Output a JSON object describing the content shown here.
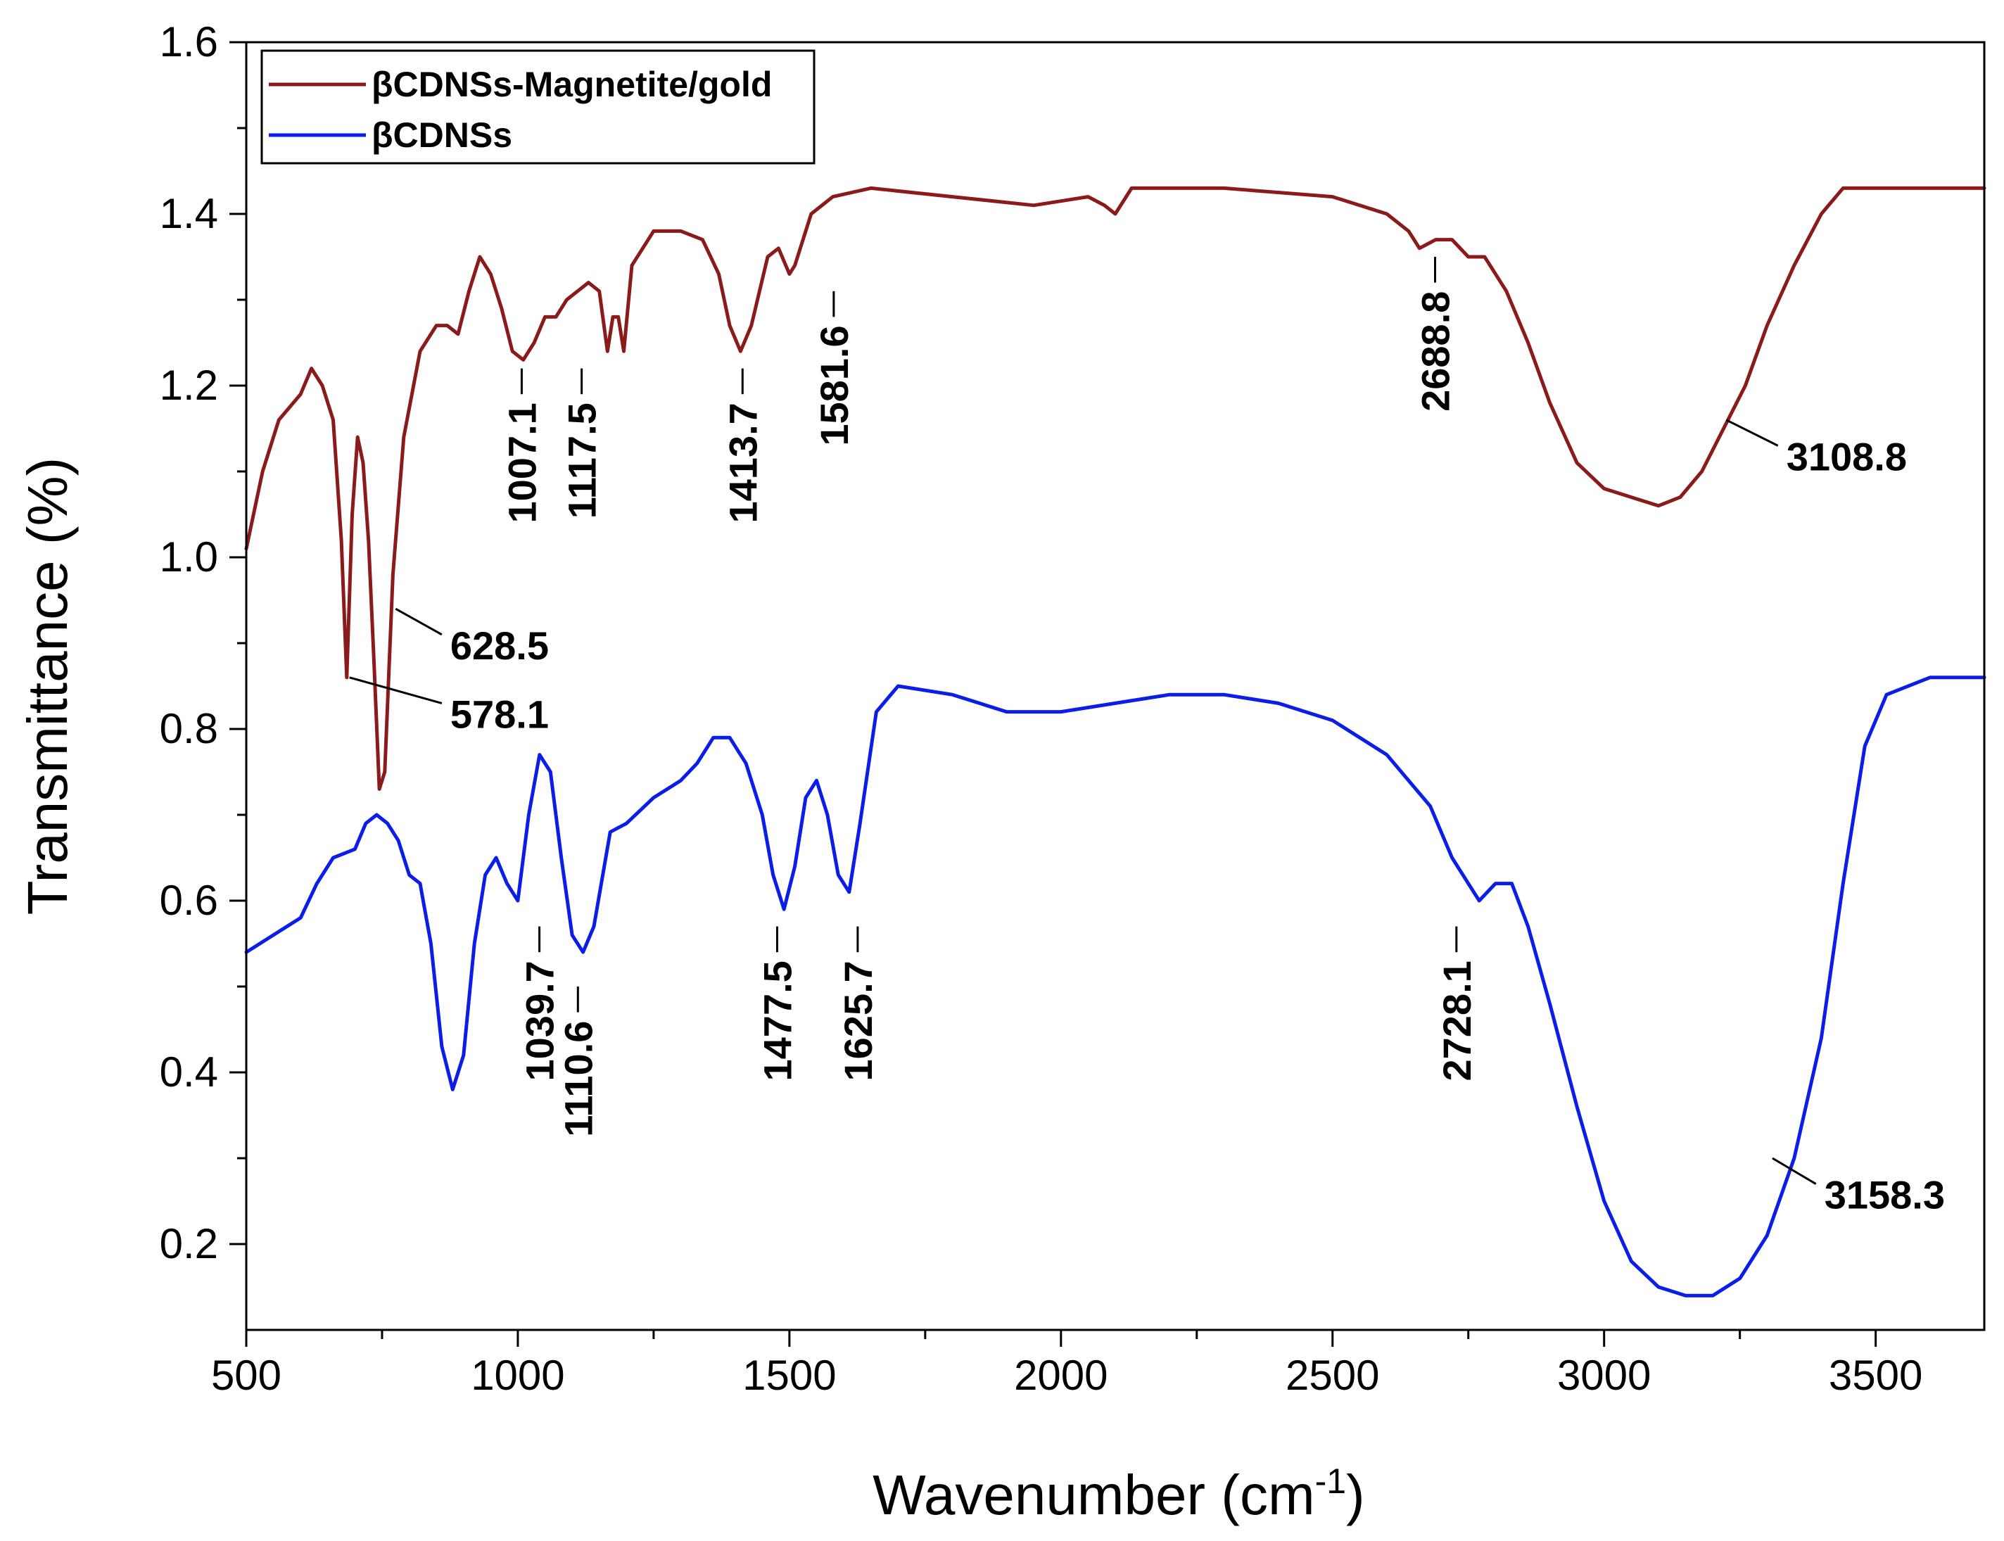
{
  "chart_data": {
    "type": "line",
    "xlabel": "Wavenumber (cm",
    "xlabel_sup": "-1",
    "xlabel_end": ")",
    "ylabel": "Transmittance (%)",
    "xlim": [
      500,
      3700
    ],
    "ylim": [
      0.1,
      1.6
    ],
    "xticks": [
      500,
      1000,
      1500,
      2000,
      2500,
      3000,
      3500
    ],
    "xtick_labels": [
      "500",
      "1000",
      "1500",
      "2000",
      "2500",
      "3000",
      "3500"
    ],
    "yticks": [
      0.2,
      0.4,
      0.6,
      0.8,
      1.0,
      1.2,
      1.4,
      1.6
    ],
    "ytick_labels": [
      "0.2",
      "0.4",
      "0.6",
      "0.8",
      "1.0",
      "1.2",
      "1.4",
      "1.6"
    ],
    "legend": {
      "placement": "top-left"
    },
    "series": [
      {
        "name": "βCDNSs-Magnetite/gold",
        "color": "#8b1a1a",
        "points": [
          [
            500,
            1.01
          ],
          [
            530,
            1.1
          ],
          [
            560,
            1.16
          ],
          [
            600,
            1.19
          ],
          [
            620,
            1.22
          ],
          [
            640,
            1.2
          ],
          [
            660,
            1.16
          ],
          [
            675,
            1.02
          ],
          [
            685,
            0.86
          ],
          [
            695,
            1.05
          ],
          [
            705,
            1.14
          ],
          [
            715,
            1.11
          ],
          [
            725,
            1.02
          ],
          [
            735,
            0.88
          ],
          [
            745,
            0.73
          ],
          [
            755,
            0.75
          ],
          [
            770,
            0.98
          ],
          [
            790,
            1.14
          ],
          [
            820,
            1.24
          ],
          [
            850,
            1.27
          ],
          [
            870,
            1.27
          ],
          [
            890,
            1.26
          ],
          [
            910,
            1.31
          ],
          [
            930,
            1.35
          ],
          [
            950,
            1.33
          ],
          [
            970,
            1.29
          ],
          [
            990,
            1.24
          ],
          [
            1010,
            1.23
          ],
          [
            1030,
            1.25
          ],
          [
            1050,
            1.28
          ],
          [
            1070,
            1.28
          ],
          [
            1090,
            1.3
          ],
          [
            1110,
            1.31
          ],
          [
            1130,
            1.32
          ],
          [
            1150,
            1.31
          ],
          [
            1165,
            1.24
          ],
          [
            1175,
            1.28
          ],
          [
            1185,
            1.28
          ],
          [
            1195,
            1.24
          ],
          [
            1210,
            1.34
          ],
          [
            1250,
            1.38
          ],
          [
            1300,
            1.38
          ],
          [
            1340,
            1.37
          ],
          [
            1370,
            1.33
          ],
          [
            1390,
            1.27
          ],
          [
            1410,
            1.24
          ],
          [
            1430,
            1.27
          ],
          [
            1460,
            1.35
          ],
          [
            1480,
            1.36
          ],
          [
            1500,
            1.33
          ],
          [
            1510,
            1.34
          ],
          [
            1540,
            1.4
          ],
          [
            1580,
            1.42
          ],
          [
            1650,
            1.43
          ],
          [
            1800,
            1.42
          ],
          [
            1950,
            1.41
          ],
          [
            2050,
            1.42
          ],
          [
            2080,
            1.41
          ],
          [
            2100,
            1.4
          ],
          [
            2130,
            1.43
          ],
          [
            2300,
            1.43
          ],
          [
            2500,
            1.42
          ],
          [
            2600,
            1.4
          ],
          [
            2640,
            1.38
          ],
          [
            2660,
            1.36
          ],
          [
            2690,
            1.37
          ],
          [
            2720,
            1.37
          ],
          [
            2750,
            1.35
          ],
          [
            2780,
            1.35
          ],
          [
            2820,
            1.31
          ],
          [
            2860,
            1.25
          ],
          [
            2900,
            1.18
          ],
          [
            2950,
            1.11
          ],
          [
            3000,
            1.08
          ],
          [
            3050,
            1.07
          ],
          [
            3100,
            1.06
          ],
          [
            3140,
            1.07
          ],
          [
            3180,
            1.1
          ],
          [
            3220,
            1.15
          ],
          [
            3260,
            1.2
          ],
          [
            3300,
            1.27
          ],
          [
            3350,
            1.34
          ],
          [
            3400,
            1.4
          ],
          [
            3440,
            1.43
          ],
          [
            3500,
            1.43
          ],
          [
            3600,
            1.43
          ],
          [
            3700,
            1.43
          ]
        ]
      },
      {
        "name": "βCDNSs",
        "color": "#0b1ee8",
        "points": [
          [
            500,
            0.54
          ],
          [
            550,
            0.56
          ],
          [
            600,
            0.58
          ],
          [
            630,
            0.62
          ],
          [
            660,
            0.65
          ],
          [
            700,
            0.66
          ],
          [
            720,
            0.69
          ],
          [
            740,
            0.7
          ],
          [
            760,
            0.69
          ],
          [
            780,
            0.67
          ],
          [
            800,
            0.63
          ],
          [
            820,
            0.62
          ],
          [
            840,
            0.55
          ],
          [
            860,
            0.43
          ],
          [
            880,
            0.38
          ],
          [
            900,
            0.42
          ],
          [
            920,
            0.55
          ],
          [
            940,
            0.63
          ],
          [
            960,
            0.65
          ],
          [
            980,
            0.62
          ],
          [
            1000,
            0.6
          ],
          [
            1020,
            0.7
          ],
          [
            1040,
            0.77
          ],
          [
            1060,
            0.75
          ],
          [
            1080,
            0.65
          ],
          [
            1100,
            0.56
          ],
          [
            1120,
            0.54
          ],
          [
            1140,
            0.57
          ],
          [
            1170,
            0.68
          ],
          [
            1200,
            0.69
          ],
          [
            1250,
            0.72
          ],
          [
            1300,
            0.74
          ],
          [
            1330,
            0.76
          ],
          [
            1360,
            0.79
          ],
          [
            1390,
            0.79
          ],
          [
            1420,
            0.76
          ],
          [
            1450,
            0.7
          ],
          [
            1470,
            0.63
          ],
          [
            1490,
            0.59
          ],
          [
            1510,
            0.64
          ],
          [
            1530,
            0.72
          ],
          [
            1550,
            0.74
          ],
          [
            1570,
            0.7
          ],
          [
            1590,
            0.63
          ],
          [
            1610,
            0.61
          ],
          [
            1630,
            0.69
          ],
          [
            1660,
            0.82
          ],
          [
            1700,
            0.85
          ],
          [
            1800,
            0.84
          ],
          [
            1900,
            0.82
          ],
          [
            2000,
            0.82
          ],
          [
            2100,
            0.83
          ],
          [
            2200,
            0.84
          ],
          [
            2300,
            0.84
          ],
          [
            2400,
            0.83
          ],
          [
            2500,
            0.81
          ],
          [
            2600,
            0.77
          ],
          [
            2680,
            0.71
          ],
          [
            2720,
            0.65
          ],
          [
            2750,
            0.62
          ],
          [
            2770,
            0.6
          ],
          [
            2800,
            0.62
          ],
          [
            2830,
            0.62
          ],
          [
            2860,
            0.57
          ],
          [
            2900,
            0.48
          ],
          [
            2950,
            0.36
          ],
          [
            3000,
            0.25
          ],
          [
            3050,
            0.18
          ],
          [
            3100,
            0.15
          ],
          [
            3150,
            0.14
          ],
          [
            3200,
            0.14
          ],
          [
            3250,
            0.16
          ],
          [
            3300,
            0.21
          ],
          [
            3350,
            0.3
          ],
          [
            3400,
            0.44
          ],
          [
            3440,
            0.62
          ],
          [
            3480,
            0.78
          ],
          [
            3520,
            0.84
          ],
          [
            3600,
            0.86
          ],
          [
            3700,
            0.86
          ]
        ]
      }
    ],
    "annotations": [
      {
        "text": "1007.1",
        "x": 1007.1,
        "y_line_top": 1.22,
        "y_line_bottom": 1.19,
        "orient": "vertical",
        "series": 0
      },
      {
        "text": "1117.5",
        "x": 1117.5,
        "y_line_top": 1.22,
        "y_line_bottom": 1.19,
        "orient": "vertical",
        "series": 0
      },
      {
        "text": "1413.7",
        "x": 1413.7,
        "y_line_top": 1.22,
        "y_line_bottom": 1.19,
        "orient": "vertical",
        "series": 0
      },
      {
        "text": "1581.6",
        "x": 1581.6,
        "y_line_top": 1.31,
        "y_line_bottom": 1.28,
        "orient": "vertical",
        "series": 0
      },
      {
        "text": "2688.8",
        "x": 2688.8,
        "y_line_top": 1.35,
        "y_line_bottom": 1.32,
        "orient": "vertical",
        "series": 0
      },
      {
        "text": "3108.8",
        "x0": 3225,
        "y0": 1.16,
        "x1": 3320,
        "y1": 1.13,
        "orient": "horizontal",
        "series": 0
      },
      {
        "text": "628.5",
        "x0": 775,
        "y0": 0.94,
        "x1": 860,
        "y1": 0.91,
        "orient": "horizontal",
        "series": 0
      },
      {
        "text": "578.1",
        "x0": 690,
        "y0": 0.86,
        "x1": 860,
        "y1": 0.83,
        "orient": "horizontal",
        "series": 0
      },
      {
        "text": "1039.7",
        "x": 1039.7,
        "y_line_top": 0.57,
        "y_line_bottom": 0.54,
        "orient": "vertical",
        "series": 1
      },
      {
        "text": "1110.6",
        "x": 1110.6,
        "y_line_top": 0.5,
        "y_line_bottom": 0.47,
        "orient": "vertical",
        "series": 1
      },
      {
        "text": "1477.5",
        "x": 1477.5,
        "y_line_top": 0.57,
        "y_line_bottom": 0.54,
        "orient": "vertical",
        "series": 1
      },
      {
        "text": "1625.7",
        "x": 1625.7,
        "y_line_top": 0.57,
        "y_line_bottom": 0.54,
        "orient": "vertical",
        "series": 1
      },
      {
        "text": "2728.1",
        "x": 2728.1,
        "y_line_top": 0.57,
        "y_line_bottom": 0.54,
        "orient": "vertical",
        "series": 1
      },
      {
        "text": "3158.3",
        "x0": 3310,
        "y0": 0.3,
        "x1": 3390,
        "y1": 0.27,
        "orient": "horizontal",
        "series": 1
      }
    ]
  }
}
